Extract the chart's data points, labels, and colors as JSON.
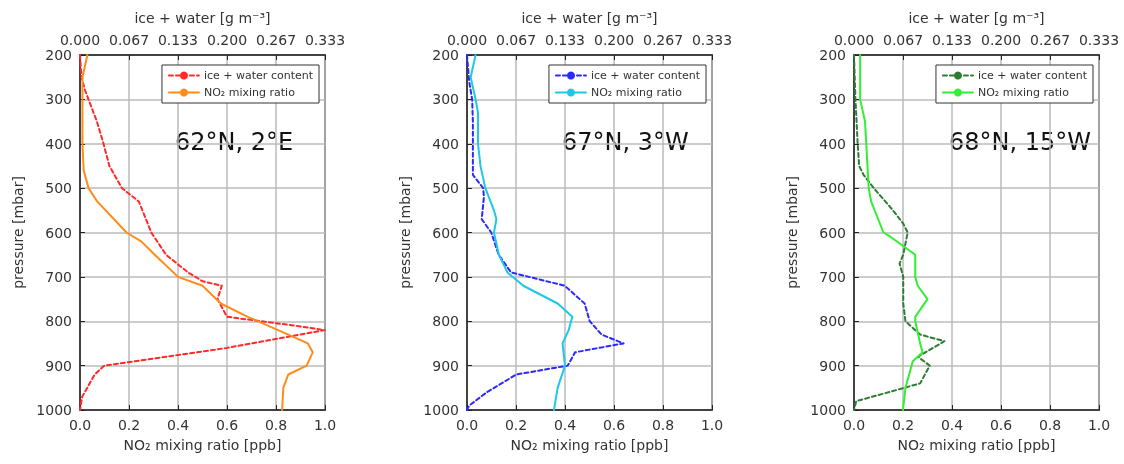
{
  "chart_data": [
    {
      "type": "line",
      "xlabel": "NO₂ mixing ratio [ppb]",
      "x2label": "ice + water [g m⁻³]",
      "ylabel": "pressure [mbar]",
      "annotations": [
        "62°N, 2°E"
      ],
      "xlim": [
        0,
        1
      ],
      "xticks": [
        {
          "value": 0,
          "label": "0.0"
        },
        {
          "value": 0.2,
          "label": "0.2"
        },
        {
          "value": 0.4,
          "label": "0.4"
        },
        {
          "value": 0.6,
          "label": "0.6"
        },
        {
          "value": 0.8,
          "label": "0.8"
        },
        {
          "value": 1,
          "label": "1.0"
        }
      ],
      "x2lim": [
        0,
        0.3333
      ],
      "x2ticks": [
        {
          "value": 0,
          "label": "0.000"
        },
        {
          "value": 0.0667,
          "label": "0.067"
        },
        {
          "value": 0.1333,
          "label": "0.133"
        },
        {
          "value": 0.2,
          "label": "0.200"
        },
        {
          "value": 0.2667,
          "label": "0.267"
        },
        {
          "value": 0.3333,
          "label": "0.333"
        }
      ],
      "ylim": [
        1000,
        200
      ],
      "yticks": [
        200,
        300,
        400,
        500,
        600,
        700,
        800,
        900,
        1000
      ],
      "grid": true,
      "legend": "top right",
      "marker": "none",
      "series": [
        {
          "name": "ice + water content",
          "color": "#ff2a2a",
          "axis": "x2",
          "line_style": "dashed",
          "x": [
            0,
            0.002,
            0.007,
            0.023,
            0.032,
            0.04,
            0.057,
            0.08,
            0.097,
            0.117,
            0.147,
            0.167,
            0.193,
            0.187,
            0.2,
            0.293,
            0.333,
            0.3,
            0.2,
            0.117,
            0.033,
            0.02,
            0.003,
            0
          ],
          "values": [
            200,
            250,
            280,
            350,
            400,
            450,
            500,
            530,
            600,
            650,
            690,
            710,
            720,
            750,
            790,
            810,
            820,
            830,
            860,
            880,
            900,
            920,
            970,
            1000
          ]
        },
        {
          "name": "NO₂ mixing ratio",
          "color": "#ff8c1a",
          "line_style": "solid",
          "x": [
            0.03,
            0.01,
            0.01,
            0.01,
            0.015,
            0.035,
            0.07,
            0.19,
            0.25,
            0.305,
            0.4,
            0.5,
            0.575,
            0.685,
            0.85,
            0.93,
            0.95,
            0.925,
            0.85,
            0.83,
            0.825
          ],
          "values": [
            200,
            250,
            300,
            400,
            460,
            500,
            530,
            600,
            620,
            650,
            700,
            720,
            760,
            790,
            830,
            850,
            870,
            900,
            920,
            950,
            1000
          ]
        }
      ]
    },
    {
      "type": "line",
      "xlabel": "NO₂ mixing ratio [ppb]",
      "x2label": "ice + water [g m⁻³]",
      "ylabel": "pressure [mbar]",
      "annotations": [
        "67°N, 3°W"
      ],
      "xlim": [
        0,
        1
      ],
      "xticks": [
        {
          "value": 0,
          "label": "0.0"
        },
        {
          "value": 0.2,
          "label": "0.2"
        },
        {
          "value": 0.4,
          "label": "0.4"
        },
        {
          "value": 0.6,
          "label": "0.6"
        },
        {
          "value": 0.8,
          "label": "0.8"
        },
        {
          "value": 1,
          "label": "1.0"
        }
      ],
      "x2lim": [
        0,
        0.3333
      ],
      "x2ticks": [
        {
          "value": 0,
          "label": "0.000"
        },
        {
          "value": 0.0667,
          "label": "0.067"
        },
        {
          "value": 0.1333,
          "label": "0.133"
        },
        {
          "value": 0.2,
          "label": "0.200"
        },
        {
          "value": 0.2667,
          "label": "0.267"
        },
        {
          "value": 0.3333,
          "label": "0.333"
        }
      ],
      "ylim": [
        1000,
        200
      ],
      "yticks": [
        200,
        300,
        400,
        500,
        600,
        700,
        800,
        900,
        1000
      ],
      "grid": true,
      "legend": "top right",
      "marker": "none",
      "series": [
        {
          "name": "ice + water content",
          "color": "#2a2aff",
          "axis": "x2",
          "line_style": "dashed",
          "x": [
            0,
            0.003,
            0.007,
            0.008,
            0.008,
            0.008,
            0.022,
            0.023,
            0.02,
            0.033,
            0.043,
            0.06,
            0.133,
            0.16,
            0.167,
            0.183,
            0.213,
            0.147,
            0.137,
            0.067,
            0.027,
            0.003,
            0
          ],
          "values": [
            200,
            260,
            300,
            350,
            400,
            470,
            500,
            520,
            570,
            600,
            650,
            690,
            720,
            760,
            800,
            830,
            850,
            870,
            900,
            920,
            960,
            990,
            1000
          ]
        },
        {
          "name": "NO₂ mixing ratio",
          "color": "#1ec8e6",
          "line_style": "solid",
          "x": [
            0.035,
            0.015,
            0.035,
            0.045,
            0.045,
            0.055,
            0.075,
            0.11,
            0.12,
            0.11,
            0.13,
            0.165,
            0.23,
            0.37,
            0.43,
            0.415,
            0.39,
            0.4,
            0.37,
            0.355
          ],
          "values": [
            200,
            250,
            300,
            330,
            400,
            450,
            500,
            550,
            570,
            600,
            650,
            690,
            720,
            760,
            790,
            820,
            850,
            900,
            950,
            1000
          ]
        }
      ]
    },
    {
      "type": "line",
      "xlabel": "NO₂ mixing ratio [ppb]",
      "x2label": "ice + water [g m⁻³]",
      "ylabel": "pressure [mbar]",
      "annotations": [
        "68°N, 15°W"
      ],
      "xlim": [
        0,
        1
      ],
      "xticks": [
        {
          "value": 0,
          "label": "0.0"
        },
        {
          "value": 0.2,
          "label": "0.2"
        },
        {
          "value": 0.4,
          "label": "0.4"
        },
        {
          "value": 0.6,
          "label": "0.6"
        },
        {
          "value": 0.8,
          "label": "0.8"
        },
        {
          "value": 1,
          "label": "1.0"
        }
      ],
      "x2lim": [
        0,
        0.3333
      ],
      "x2ticks": [
        {
          "value": 0,
          "label": "0.000"
        },
        {
          "value": 0.0667,
          "label": "0.067"
        },
        {
          "value": 0.1333,
          "label": "0.133"
        },
        {
          "value": 0.2,
          "label": "0.200"
        },
        {
          "value": 0.2667,
          "label": "0.267"
        },
        {
          "value": 0.3333,
          "label": "0.333"
        }
      ],
      "ylim": [
        1000,
        200
      ],
      "yticks": [
        200,
        300,
        400,
        500,
        600,
        700,
        800,
        900,
        1000
      ],
      "grid": true,
      "legend": "top right",
      "marker": "none",
      "series": [
        {
          "name": "ice + water content",
          "color": "#2e7d32",
          "axis": "x2",
          "line_style": "dashed",
          "x": [
            0,
            0.002,
            0.005,
            0.007,
            0.013,
            0.027,
            0.053,
            0.067,
            0.073,
            0.067,
            0.062,
            0.067,
            0.067,
            0.07,
            0.09,
            0.123,
            0.087,
            0.103,
            0.09,
            0.047,
            0.003,
            0
          ],
          "values": [
            200,
            300,
            400,
            450,
            470,
            500,
            550,
            580,
            600,
            650,
            670,
            700,
            760,
            800,
            830,
            845,
            880,
            900,
            940,
            960,
            980,
            1000
          ]
        },
        {
          "name": "NO₂ mixing ratio",
          "color": "#33ee33",
          "line_style": "solid",
          "x": [
            0.025,
            0.025,
            0.045,
            0.05,
            0.06,
            0.07,
            0.12,
            0.15,
            0.25,
            0.25,
            0.26,
            0.3,
            0.25,
            0.25,
            0.27,
            0.28,
            0.24,
            0.21,
            0.2
          ],
          "values": [
            200,
            300,
            350,
            400,
            500,
            530,
            600,
            610,
            650,
            700,
            720,
            750,
            790,
            800,
            850,
            870,
            890,
            950,
            1000
          ]
        }
      ]
    }
  ]
}
